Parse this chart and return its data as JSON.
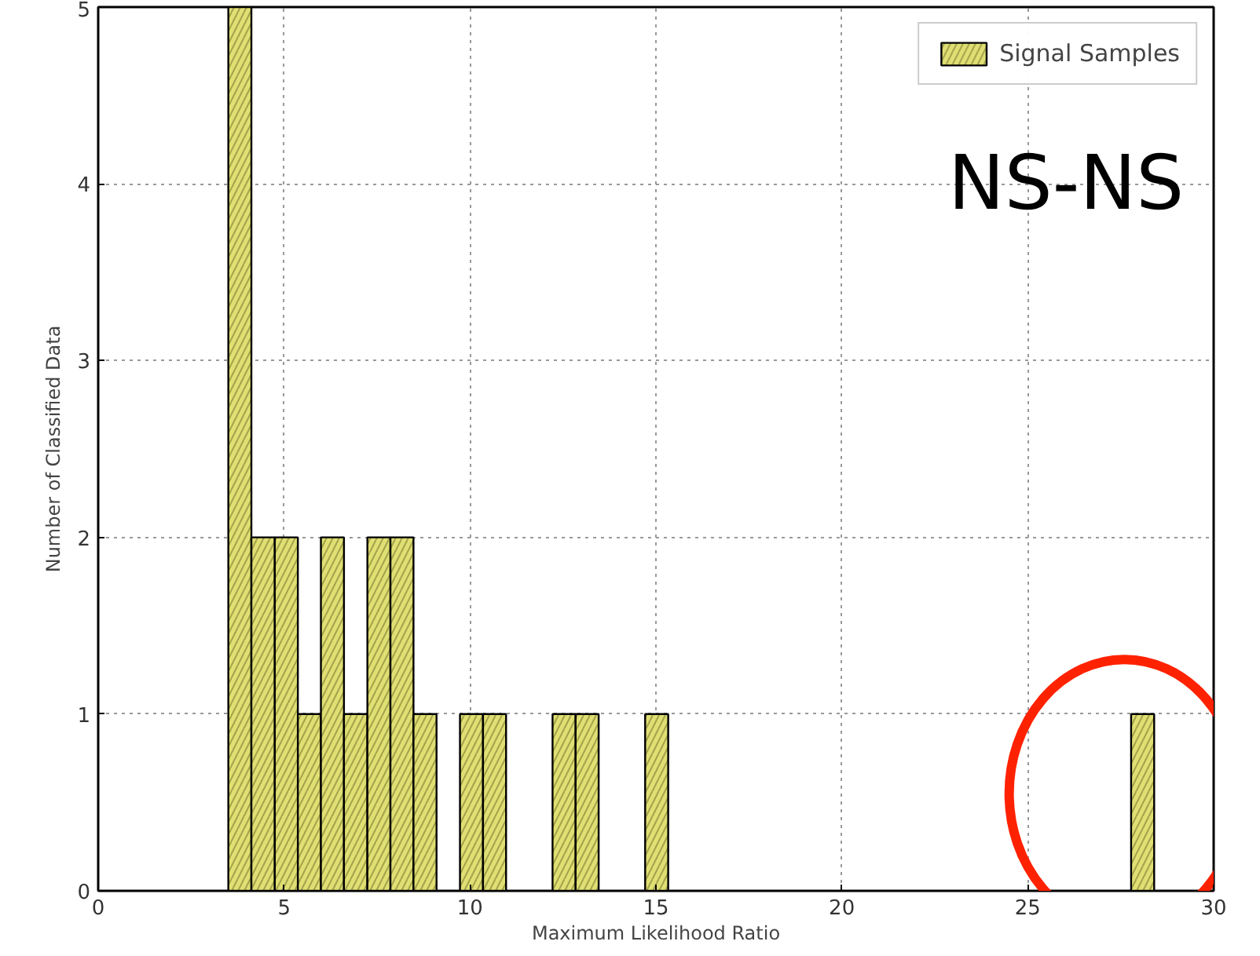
{
  "chart_data": {
    "type": "histogram",
    "xlabel": "Maximum Likelihood Ratio",
    "ylabel": "Number of Classified Data",
    "bins": [
      3.5,
      4.12,
      4.75,
      5.37,
      5.99,
      6.61,
      7.24,
      7.86,
      8.48,
      9.1,
      9.73,
      10.35,
      10.97,
      11.59,
      12.22,
      12.84,
      13.46,
      14.08,
      14.71,
      15.33,
      15.95,
      16.57,
      17.2,
      17.82,
      18.44,
      19.06,
      19.69,
      20.31,
      20.93,
      21.55,
      22.18,
      22.8,
      23.42,
      24.04,
      24.67,
      25.29,
      25.91,
      26.53,
      27.16,
      27.78,
      28.4
    ],
    "series": [
      {
        "name": "Signal Samples",
        "color": "#e0df73",
        "values": [
          5,
          2,
          2,
          1,
          2,
          1,
          2,
          2,
          1,
          0,
          1,
          1,
          0,
          0,
          1,
          1,
          0,
          0,
          1,
          0,
          0,
          0,
          0,
          0,
          0,
          0,
          0,
          0,
          0,
          0,
          0,
          0,
          0,
          0,
          0,
          0,
          0,
          0,
          0,
          1
        ]
      }
    ],
    "xlim": [
      0,
      30
    ],
    "ylim": [
      0,
      5
    ],
    "xticks": [
      0,
      5,
      10,
      15,
      20,
      25,
      30
    ],
    "yticks": [
      0,
      1,
      2,
      3,
      4,
      5
    ],
    "grid": true,
    "legend": "top right",
    "annotations": [
      "NS-NS"
    ]
  }
}
